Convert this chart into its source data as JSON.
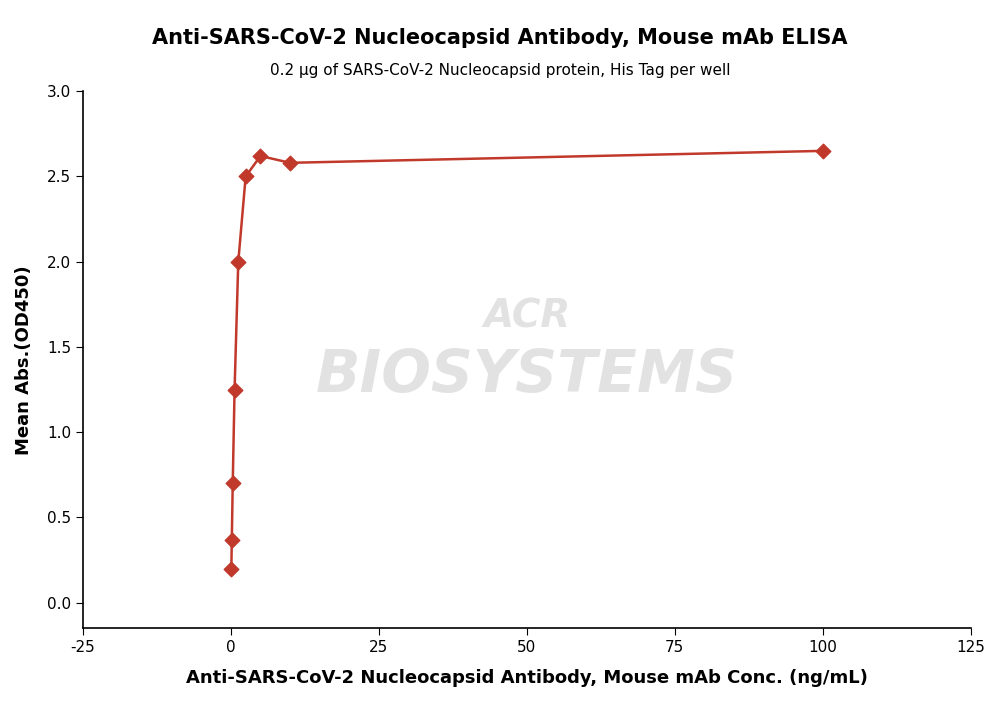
{
  "title": "Anti-SARS-CoV-2 Nucleocapsid Antibody, Mouse mAb ELISA",
  "subtitle": "0.2 μg of SARS-CoV-2 Nucleocapsid protein, His Tag per well",
  "xlabel": "Anti-SARS-CoV-2 Nucleocapsid Antibody, Mouse mAb Conc. (ng/mL)",
  "ylabel": "Mean Abs.(OD450)",
  "x_data": [
    0.078,
    0.156,
    0.313,
    0.625,
    1.25,
    2.5,
    5.0,
    10.0,
    100.0
  ],
  "y_data": [
    0.2,
    0.37,
    0.7,
    1.25,
    2.0,
    2.5,
    2.62,
    2.58,
    2.65
  ],
  "line_color": "#c0392b",
  "marker_color": "#c0392b",
  "xlim": [
    -25,
    125
  ],
  "ylim": [
    -0.15,
    3.0
  ],
  "xticks": [
    -25,
    0,
    25,
    50,
    75,
    100,
    125
  ],
  "yticks": [
    0.0,
    0.5,
    1.0,
    1.5,
    2.0,
    2.5,
    3.0
  ],
  "title_fontsize": 15,
  "subtitle_fontsize": 11,
  "xlabel_fontsize": 13,
  "ylabel_fontsize": 13,
  "tick_fontsize": 11,
  "watermark_acr_fontsize": 28,
  "watermark_bio_fontsize": 42,
  "watermark_color": "#d0d0d0",
  "watermark_alpha": 0.6,
  "background_color": "#ffffff"
}
